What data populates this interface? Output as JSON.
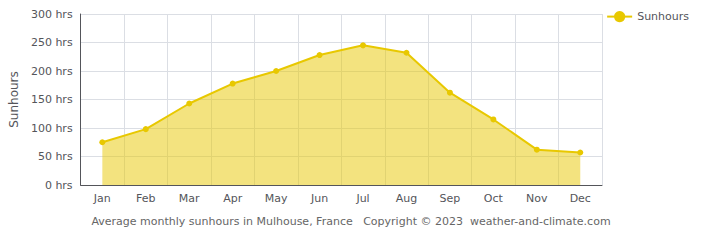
{
  "chart_data": {
    "type": "area",
    "categories": [
      "Jan",
      "Feb",
      "Mar",
      "Apr",
      "May",
      "Jun",
      "Jul",
      "Aug",
      "Sep",
      "Oct",
      "Nov",
      "Dec"
    ],
    "series": [
      {
        "name": "Sunhours",
        "color": "#E8C800",
        "values": [
          75,
          98,
          143,
          178,
          200,
          228,
          245,
          232,
          162,
          115,
          62,
          57
        ]
      }
    ],
    "ylabel": "Sunhours",
    "ylim": [
      0,
      300
    ],
    "yticks": [
      {
        "value": 0,
        "label": "0 hrs"
      },
      {
        "value": 50,
        "label": "50 hrs"
      },
      {
        "value": 100,
        "label": "100 hrs"
      },
      {
        "value": 150,
        "label": "150 hrs"
      },
      {
        "value": 200,
        "label": "200 hrs"
      },
      {
        "value": 250,
        "label": "250 hrs"
      },
      {
        "value": 300,
        "label": "300 hrs"
      }
    ],
    "annotations": [
      "Average monthly sunhours in Mulhouse, France   Copyright © 2023  weather-and-climate.com"
    ],
    "grid": true,
    "legend": "upper right",
    "marker": "circle"
  }
}
